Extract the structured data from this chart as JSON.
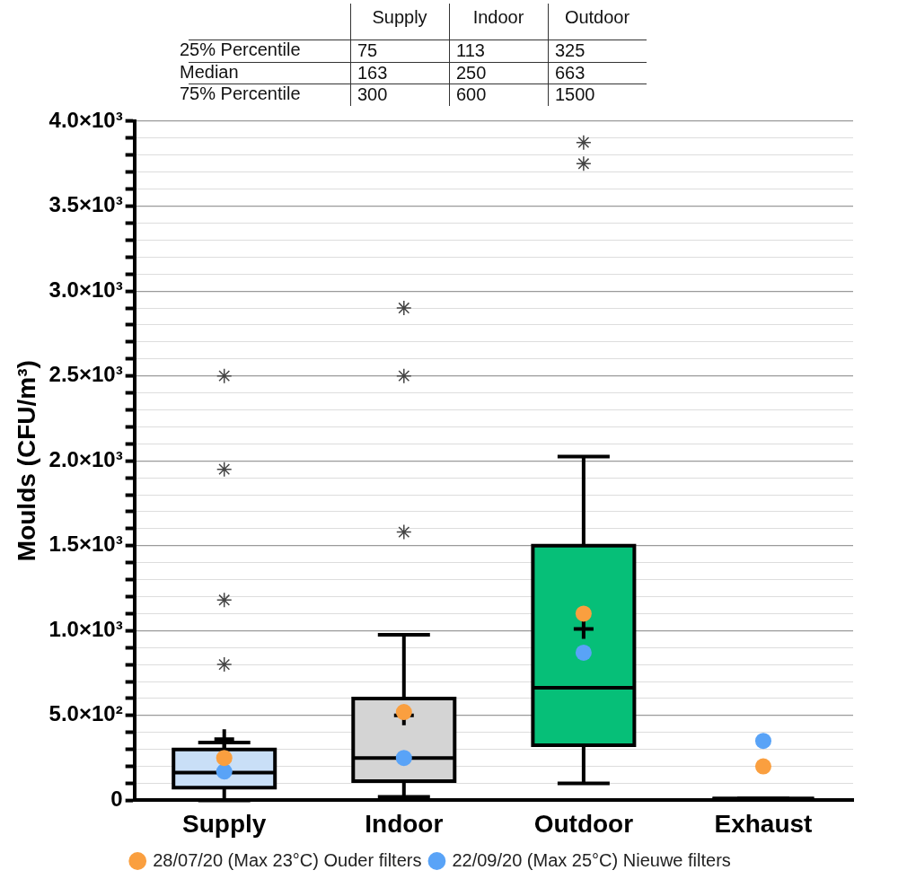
{
  "chart_data": [
    {
      "type": "heatmap",
      "categories": [
        "Supply",
        "Indoor",
        "Outdoor"
      ],
      "y_categories": [
        "25% Percentile",
        "Median",
        "75% Percentile"
      ],
      "cells": [
        [
          75,
          113,
          325
        ],
        [
          163,
          250,
          663
        ],
        [
          300,
          600,
          1500
        ]
      ],
      "data_labels": true
    },
    {
      "type": "box",
      "categories": [
        "Supply",
        "Indoor",
        "Outdoor",
        "Exhaust"
      ],
      "colors": [
        "#c9dff7",
        "#d4d4d4",
        "#06bf78",
        null
      ],
      "boxes": [
        {
          "low": 0,
          "q1": 75,
          "median": 163,
          "q3": 300,
          "high": 340,
          "mean": 360,
          "outliers": [
            800,
            1180,
            1950,
            2500
          ]
        },
        {
          "low": 20,
          "q1": 113,
          "median": 250,
          "q3": 600,
          "high": 975,
          "mean": 500,
          "outliers": [
            1580,
            2500,
            2900
          ]
        },
        {
          "low": 100,
          "q1": 325,
          "median": 663,
          "q3": 1500,
          "high": 2025,
          "mean": 1010,
          "outliers": [
            3750,
            3875
          ]
        },
        {
          "low": 10,
          "q1": 10,
          "median": 10,
          "q3": 10,
          "high": 10
        }
      ],
      "series": [
        {
          "type": "scatter",
          "name": "28/07/20 (Max 23°C) Ouder filters",
          "color": "#fa9f3f",
          "values": [
            250,
            520,
            1100,
            200
          ]
        },
        {
          "type": "scatter",
          "name": "22/09/20 (Max 25°C) Nieuwe filters",
          "color": "#59a3f7",
          "values": [
            170,
            250,
            870,
            350
          ]
        }
      ],
      "ylabel": "Moulds (CFU/m³)",
      "ylim": [
        0,
        4000
      ],
      "yticks": [
        {
          "value": 0,
          "label": "0"
        },
        {
          "value": 500,
          "label": "5.0×10²"
        },
        {
          "value": 1000,
          "label": "1.0×10³"
        },
        {
          "value": 1500,
          "label": "1.5×10³"
        },
        {
          "value": 2000,
          "label": "2.0×10³"
        },
        {
          "value": 2500,
          "label": "2.5×10³"
        },
        {
          "value": 3000,
          "label": "3.0×10³"
        },
        {
          "value": 3500,
          "label": "3.5×10³"
        },
        {
          "value": 4000,
          "label": "4.0×10³"
        }
      ],
      "grid": "y",
      "legend": "bottom",
      "marker": "circle"
    }
  ]
}
